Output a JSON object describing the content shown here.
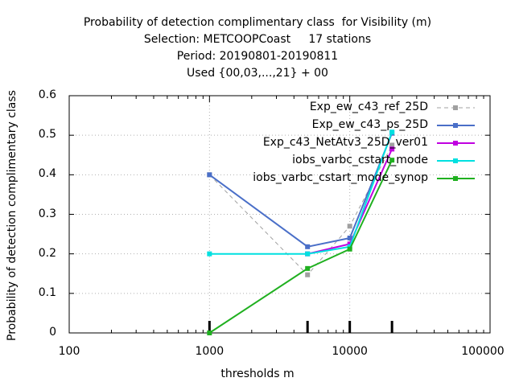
{
  "chart_data": {
    "type": "line",
    "title_lines": [
      "Probability of detection complimentary class  for Visibility (m)",
      "Selection: METCOOPCoast     17 stations",
      "Period: 20190801-20190811",
      "Used {00,03,...,21} + 00"
    ],
    "xlabel": "thresholds m",
    "ylabel": "Probability of detection complimentary class",
    "x_scale": "log",
    "xlim": [
      100,
      100000
    ],
    "ylim": [
      0,
      0.6
    ],
    "x_ticks": [
      100,
      1000,
      10000,
      100000
    ],
    "x_tick_labels": [
      "100",
      "1000",
      "10000",
      "100000"
    ],
    "y_ticks": [
      0,
      0.1,
      0.2,
      0.3,
      0.4,
      0.5,
      0.6
    ],
    "y_tick_labels": [
      "0",
      "0.1",
      "0.2",
      "0.3",
      "0.4",
      "0.5",
      "0.6"
    ],
    "grid": true,
    "legend_position": "top-right",
    "sample_marks_x": [
      1000,
      5000,
      10000,
      20000
    ],
    "series": [
      {
        "name": "Exp_ew_c43_ref_25D",
        "color": "#a0a0a0",
        "dashed": true,
        "x": [
          1000,
          5000,
          10000,
          20000
        ],
        "y": [
          0.4,
          0.147,
          0.27,
          0.475
        ]
      },
      {
        "name": "Exp_ew_c43_ps_25D",
        "color": "#4a6fc8",
        "dashed": false,
        "x": [
          1000,
          5000,
          10000,
          20000
        ],
        "y": [
          0.4,
          0.218,
          0.24,
          0.505
        ]
      },
      {
        "name": "Exp_c43_NetAtv3_25D_ver01",
        "color": "#c000e0",
        "dashed": false,
        "x": [
          5000,
          10000,
          20000
        ],
        "y": [
          0.2,
          0.225,
          0.465
        ]
      },
      {
        "name": "iobs_varbc_cstart_mode",
        "color": "#00e0e0",
        "dashed": false,
        "x": [
          1000,
          5000,
          10000,
          20000
        ],
        "y": [
          0.2,
          0.2,
          0.218,
          0.508
        ]
      },
      {
        "name": "iobs_varbc_cstart_mode_synop",
        "color": "#20b020",
        "dashed": false,
        "x": [
          1000,
          5000,
          10000,
          20000
        ],
        "y": [
          0.0,
          0.163,
          0.212,
          0.437
        ]
      }
    ]
  }
}
